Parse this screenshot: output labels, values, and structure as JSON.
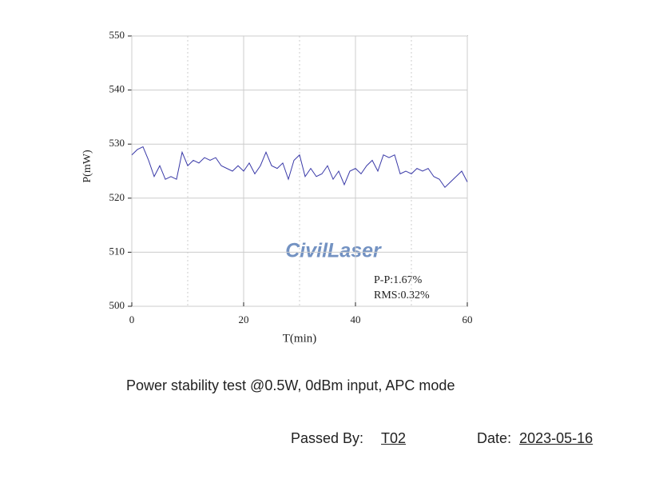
{
  "chart_data": {
    "type": "line",
    "x_label": "T(min)",
    "y_label": "P(mW)",
    "x": [
      0,
      1,
      2,
      3,
      4,
      5,
      6,
      7,
      8,
      9,
      10,
      11,
      12,
      13,
      14,
      15,
      16,
      17,
      18,
      19,
      20,
      21,
      22,
      23,
      24,
      25,
      26,
      27,
      28,
      29,
      30,
      31,
      32,
      33,
      34,
      35,
      36,
      37,
      38,
      39,
      40,
      41,
      42,
      43,
      44,
      45,
      46,
      47,
      48,
      49,
      50,
      51,
      52,
      53,
      54,
      55,
      56,
      57,
      58,
      59,
      60
    ],
    "series": [
      {
        "name": "P",
        "color": "#3a3aa8",
        "values": [
          528,
          529,
          529.5,
          527,
          524,
          526,
          523.5,
          524,
          523.5,
          528.5,
          526,
          527,
          526.5,
          527.5,
          527,
          527.5,
          526,
          525.5,
          525,
          526,
          525,
          526.5,
          524.5,
          526,
          528.5,
          526,
          525.5,
          526.5,
          523.5,
          527,
          528,
          524,
          525.5,
          524,
          524.5,
          526,
          523.5,
          525,
          522.5,
          525,
          525.5,
          524.5,
          526,
          527,
          525,
          528,
          527.5,
          528,
          524.5,
          525,
          524.5,
          525.5,
          525,
          525.5,
          524,
          523.5,
          522,
          523,
          524,
          525,
          523
        ]
      }
    ],
    "xlim": [
      0,
      60
    ],
    "xticks": [
      0,
      20,
      40,
      60
    ],
    "x_minor_grid": [
      10,
      30,
      50
    ],
    "ylim": [
      500,
      550
    ],
    "yticks": [
      500,
      510,
      520,
      530,
      540,
      550
    ],
    "grid": true,
    "annotations": [
      "P-P:1.67%",
      "RMS:0.32%"
    ],
    "watermark": "CivilLaser"
  },
  "caption": "Power stability test @0.5W, 0dBm input, APC mode",
  "signature": {
    "passed_label": "Passed  By:",
    "passed_by": "T02",
    "date_label": "Date:",
    "date": "2023-05-16"
  }
}
